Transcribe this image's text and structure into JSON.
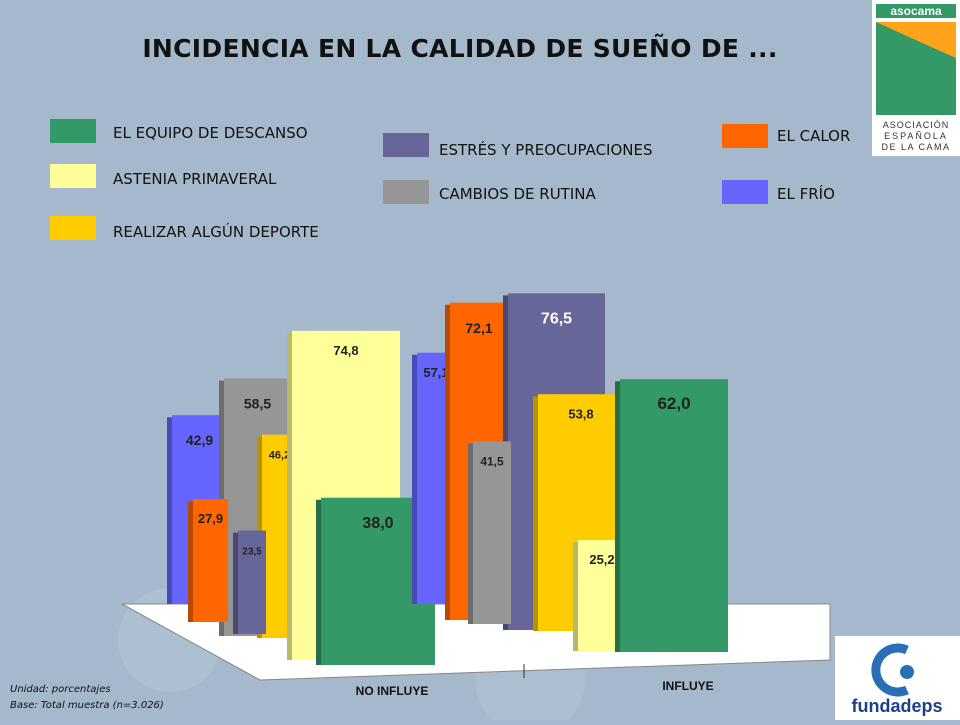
{
  "title": "INCIDENCIA EN LA CALIDAD DE SUEÑO DE ...",
  "colors": {
    "background": "#a6b9cc",
    "equipo": "#339966",
    "astenia": "#ffff99",
    "deporte": "#ffcc00",
    "estres": "#666699",
    "rutina": "#969696",
    "calor": "#ff6600",
    "frio": "#6666ff"
  },
  "legend": [
    {
      "label": "EL EQUIPO DE DESCANSO",
      "color": "#339966"
    },
    {
      "label": "ASTENIA PRIMAVERAL",
      "color": "#ffff99"
    },
    {
      "label": "REALIZAR ALGÚN DEPORTE",
      "color": "#ffcc00"
    },
    {
      "label": "ESTRÉS Y PREOCUPACIONES",
      "color": "#666699"
    },
    {
      "label": "CAMBIOS DE RUTINA",
      "color": "#969696"
    },
    {
      "label": "EL CALOR",
      "color": "#ff6600"
    },
    {
      "label": "EL FRÍO",
      "color": "#6666ff"
    }
  ],
  "chart_data": {
    "type": "bar",
    "categories": [
      "NO INFLUYE",
      "INFLUYE"
    ],
    "series": [
      {
        "name": "EL FRÍO",
        "values": [
          42.9,
          57.1
        ],
        "labels": [
          "42,9",
          "57,1"
        ]
      },
      {
        "name": "EL CALOR",
        "values": [
          27.9,
          72.1
        ],
        "labels": [
          "27,9",
          "72,1"
        ]
      },
      {
        "name": "CAMBIOS DE RUTINA",
        "values": [
          58.5,
          41.5
        ],
        "labels": [
          "58,5",
          "41,5"
        ]
      },
      {
        "name": "ESTRÉS Y PREOCUPACIONES",
        "values": [
          23.5,
          76.5
        ],
        "labels": [
          "23,5",
          "76,5"
        ]
      },
      {
        "name": "REALIZAR ALGÚN DEPORTE",
        "values": [
          46.2,
          53.8
        ],
        "labels": [
          "46,2",
          "53,8"
        ]
      },
      {
        "name": "ASTENIA PRIMAVERAL",
        "values": [
          74.8,
          25.2
        ],
        "labels": [
          "74,8",
          "25,2"
        ]
      },
      {
        "name": "EL EQUIPO DE DESCANSO",
        "values": [
          38.0,
          62.0
        ],
        "labels": [
          "38,0",
          "62,0"
        ]
      }
    ],
    "ylim": [
      0,
      100
    ],
    "grid": false,
    "legend_position": "top"
  },
  "footnote": {
    "unit": "Unidad: porcentajes",
    "base": "Base: Total muestra (n=3.026)"
  },
  "logos": {
    "asocama_name": "asocama",
    "asocama_line1": "ASOCIACIÓN",
    "asocama_line2": "ESPAÑOLA",
    "asocama_line3": "DE LA CAMA",
    "fundadeps_name": "fundadeps"
  }
}
